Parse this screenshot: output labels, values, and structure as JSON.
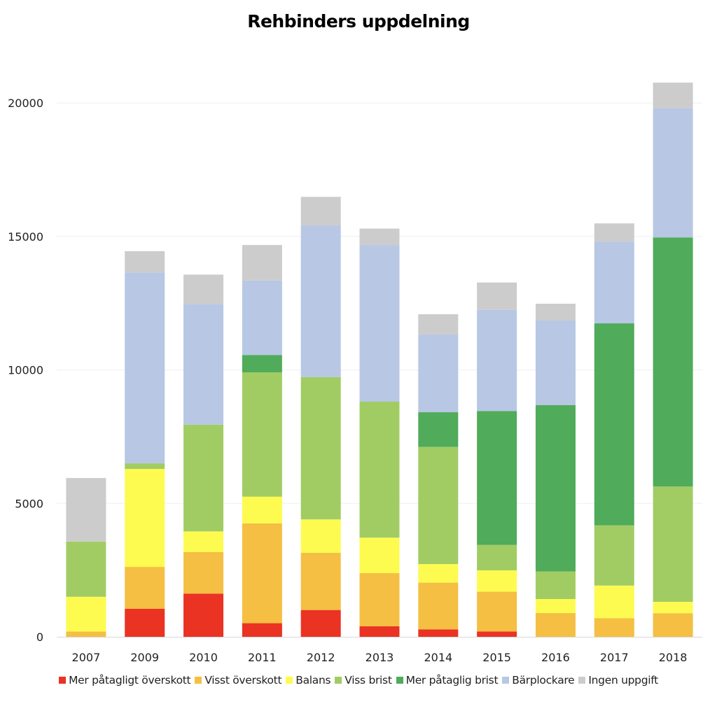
{
  "chart_data": {
    "type": "bar",
    "stacked": true,
    "title": "Rehbinders uppdelning",
    "xlabel": "",
    "ylabel": "",
    "ylim": [
      0,
      21000
    ],
    "yticks": [
      0,
      5000,
      10000,
      15000,
      20000
    ],
    "grid": true,
    "legend_position": "bottom",
    "categories": [
      "2007",
      "2009",
      "2010",
      "2011",
      "2012",
      "2013",
      "2014",
      "2015",
      "2016",
      "2017",
      "2018"
    ],
    "series": [
      {
        "name": "Mer påtagligt överskott",
        "color": "#EA3323",
        "values": [
          0,
          1050,
          1620,
          510,
          1005,
          395,
          280,
          200,
          0,
          0,
          0
        ]
      },
      {
        "name": "Visst överskott",
        "color": "#F4BF42",
        "values": [
          200,
          1570,
          1560,
          3740,
          2145,
          1990,
          1750,
          1490,
          890,
          700,
          885
        ]
      },
      {
        "name": "Balans",
        "color": "#FEFB50",
        "values": [
          1300,
          3670,
          770,
          1000,
          1250,
          1330,
          695,
          800,
          525,
          1220,
          425
        ]
      },
      {
        "name": "Viss brist",
        "color": "#A1CC64",
        "values": [
          2070,
          210,
          4000,
          4660,
          5330,
          5095,
          4390,
          955,
          1035,
          2255,
          4320
        ]
      },
      {
        "name": "Mer påtaglig brist",
        "color": "#50AB5A",
        "values": [
          0,
          0,
          0,
          650,
          0,
          0,
          1300,
          5015,
          6235,
          7570,
          9335
        ]
      },
      {
        "name": "Bärplockare",
        "color": "#B7C7E4",
        "values": [
          0,
          7150,
          4520,
          2790,
          5685,
          5870,
          2910,
          3790,
          3165,
          3060,
          4840
        ]
      },
      {
        "name": "Ingen uppgift",
        "color": "#CDCCCD",
        "values": [
          2380,
          800,
          1100,
          1330,
          1070,
          615,
          760,
          1025,
          630,
          685,
          960
        ]
      }
    ]
  }
}
